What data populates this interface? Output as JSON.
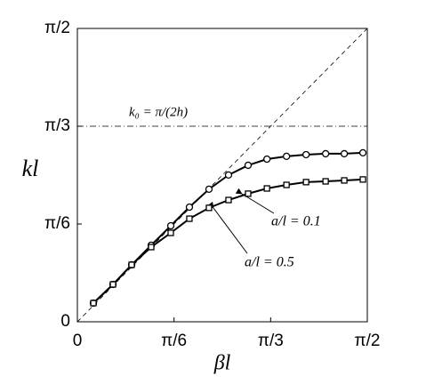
{
  "chart_data": {
    "type": "line",
    "x_label": "βl",
    "y_label": "kl",
    "x": [
      0.087,
      0.193,
      0.294,
      0.4,
      0.506,
      0.607,
      0.713,
      0.819,
      0.925,
      1.027,
      1.133,
      1.239,
      1.345,
      1.446,
      1.547
    ],
    "series": [
      {
        "name": "a/l = 0.1",
        "marker": "circle",
        "color": "#000000",
        "values": [
          0.1,
          0.2,
          0.305,
          0.41,
          0.514,
          0.614,
          0.71,
          0.786,
          0.838,
          0.871,
          0.886,
          0.895,
          0.9,
          0.9,
          0.905
        ]
      },
      {
        "name": "a/l = 0.5",
        "marker": "square",
        "color": "#000000",
        "values": [
          0.1,
          0.2,
          0.305,
          0.4,
          0.476,
          0.552,
          0.61,
          0.652,
          0.686,
          0.714,
          0.733,
          0.748,
          0.752,
          0.757,
          0.762
        ]
      }
    ],
    "ref_line": {
      "value": 1.0472,
      "label": "k₀ = π/(2h)"
    },
    "xlim": [
      0,
      1.5708
    ],
    "ylim": [
      0,
      1.5708
    ],
    "xticks": [
      0,
      {
        "value": 0.5236,
        "label": "π/6"
      },
      {
        "value": 1.0472,
        "label": "π/3"
      },
      {
        "value": 1.5708,
        "label": "π/2"
      }
    ],
    "yticks": [
      0,
      {
        "value": 0.5236,
        "label": "π/6"
      },
      {
        "value": 1.0472,
        "label": "π/3"
      },
      {
        "value": 1.5708,
        "label": "π/2"
      }
    ]
  }
}
